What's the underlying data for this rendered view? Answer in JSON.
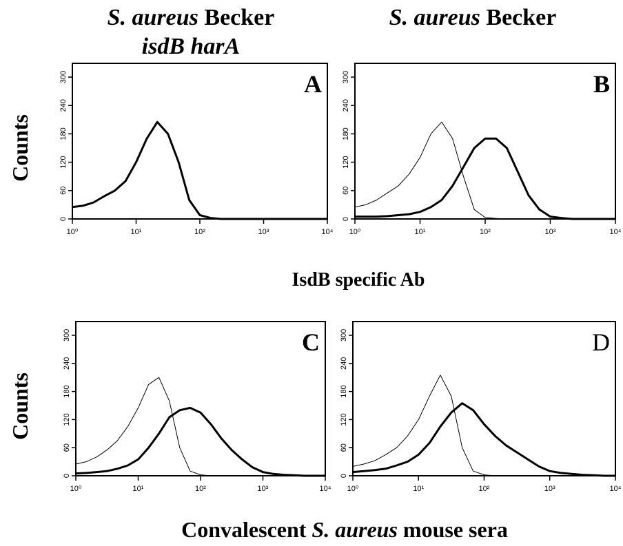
{
  "figure": {
    "column_titles": [
      [
        [
          {
            "text": "S. aureus",
            "italic": true
          },
          {
            "text": " Becker",
            "italic": false
          }
        ],
        [
          {
            "text": "isdB harA",
            "italic": true
          }
        ]
      ],
      [
        [
          {
            "text": "S. aureus",
            "italic": true
          },
          {
            "text": " Becker",
            "italic": false
          }
        ]
      ]
    ],
    "rows": [
      {
        "y_label": "Counts",
        "x_label": [
          {
            "text": "IsdB specific Ab",
            "italic": false
          }
        ]
      },
      {
        "y_label": "Counts",
        "x_label": [
          {
            "text": "Convalescent ",
            "italic": false
          },
          {
            "text": "S. aureus",
            "italic": true
          },
          {
            "text": " mouse sera",
            "italic": false
          }
        ]
      }
    ]
  },
  "chart_data": [
    {
      "type": "line",
      "label": "A",
      "label_bold": true,
      "xscale": "log",
      "x": [
        1,
        1.47,
        2.15,
        3.16,
        4.64,
        6.81,
        10,
        14.7,
        21.5,
        31.6,
        46.4,
        68.1,
        100,
        147,
        215,
        316,
        464,
        681,
        1000,
        1470,
        2150,
        3160,
        4640,
        6810,
        10000
      ],
      "series": [
        {
          "color": "#000",
          "width": 1,
          "values": [
            24,
            28,
            36,
            48,
            60,
            80,
            120,
            172,
            205,
            178,
            118,
            40,
            8,
            2,
            0,
            0,
            0,
            0,
            0,
            0,
            0,
            0,
            0,
            0,
            0
          ]
        },
        {
          "color": "#000",
          "width": 3,
          "values": [
            25,
            28,
            35,
            48,
            60,
            80,
            120,
            170,
            205,
            180,
            120,
            40,
            8,
            2,
            0,
            0,
            0,
            0,
            0,
            0,
            0,
            0,
            0,
            0,
            0
          ]
        }
      ],
      "xlim": [
        1,
        10000
      ],
      "ylim": [
        0,
        300
      ],
      "xticks": [
        {
          "value": 1,
          "label": "10⁰"
        },
        {
          "value": 10,
          "label": "10¹"
        },
        {
          "value": 100,
          "label": "10²"
        },
        {
          "value": 1000,
          "label": "10³"
        },
        {
          "value": 10000,
          "label": "10⁴"
        }
      ],
      "yticks": [
        0,
        60,
        120,
        180,
        240,
        300
      ]
    },
    {
      "type": "line",
      "label": "B",
      "label_bold": true,
      "xscale": "log",
      "x": [
        1,
        1.47,
        2.15,
        3.16,
        4.64,
        6.81,
        10,
        14.7,
        21.5,
        31.6,
        46.4,
        68.1,
        100,
        147,
        215,
        316,
        464,
        681,
        1000,
        1470,
        2150,
        3160,
        4640,
        6810,
        10000
      ],
      "series": [
        {
          "color": "#000",
          "width": 1,
          "values": [
            25,
            30,
            40,
            55,
            70,
            95,
            130,
            180,
            205,
            170,
            90,
            20,
            3,
            1,
            0,
            0,
            0,
            0,
            0,
            0,
            0,
            0,
            0,
            0,
            0
          ]
        },
        {
          "color": "#000",
          "width": 3,
          "values": [
            5,
            5,
            5,
            6,
            8,
            10,
            15,
            25,
            40,
            70,
            110,
            150,
            170,
            170,
            150,
            100,
            50,
            20,
            5,
            2,
            0,
            0,
            0,
            0,
            0
          ]
        }
      ],
      "xlim": [
        1,
        10000
      ],
      "ylim": [
        0,
        300
      ],
      "xticks": [
        {
          "value": 1,
          "label": "10⁰"
        },
        {
          "value": 10,
          "label": "10¹"
        },
        {
          "value": 100,
          "label": "10²"
        },
        {
          "value": 1000,
          "label": "10³"
        },
        {
          "value": 10000,
          "label": "10⁴"
        }
      ],
      "yticks": [
        0,
        60,
        120,
        180,
        240,
        300
      ]
    },
    {
      "type": "line",
      "label": "C",
      "label_bold": true,
      "xscale": "log",
      "x": [
        1,
        1.47,
        2.15,
        3.16,
        4.64,
        6.81,
        10,
        14.7,
        21.5,
        31.6,
        46.4,
        68.1,
        100,
        147,
        215,
        316,
        464,
        681,
        1000,
        1470,
        2150,
        3160,
        4640,
        6810,
        10000
      ],
      "series": [
        {
          "color": "#000",
          "width": 1,
          "values": [
            25,
            30,
            40,
            55,
            75,
            105,
            145,
            195,
            210,
            160,
            60,
            10,
            2,
            0,
            0,
            0,
            0,
            0,
            0,
            0,
            0,
            0,
            0,
            0,
            0
          ]
        },
        {
          "color": "#000",
          "width": 3,
          "values": [
            5,
            6,
            8,
            10,
            15,
            22,
            35,
            60,
            90,
            125,
            140,
            145,
            135,
            110,
            80,
            55,
            35,
            18,
            8,
            4,
            2,
            1,
            0,
            0,
            0
          ]
        }
      ],
      "xlim": [
        1,
        10000
      ],
      "ylim": [
        0,
        300
      ],
      "xticks": [
        {
          "value": 1,
          "label": "10⁰"
        },
        {
          "value": 10,
          "label": "10¹"
        },
        {
          "value": 100,
          "label": "10²"
        },
        {
          "value": 1000,
          "label": "10³"
        },
        {
          "value": 10000,
          "label": "10⁴"
        }
      ],
      "yticks": [
        0,
        60,
        120,
        180,
        240,
        300
      ]
    },
    {
      "type": "line",
      "label": "D",
      "label_bold": false,
      "xscale": "log",
      "x": [
        1,
        1.47,
        2.15,
        3.16,
        4.64,
        6.81,
        10,
        14.7,
        21.5,
        31.6,
        46.4,
        68.1,
        100,
        147,
        215,
        316,
        464,
        681,
        1000,
        1470,
        2150,
        3160,
        4640,
        6810,
        10000
      ],
      "series": [
        {
          "color": "#000",
          "width": 1,
          "values": [
            20,
            25,
            32,
            45,
            60,
            85,
            120,
            170,
            215,
            170,
            60,
            10,
            2,
            0,
            0,
            0,
            0,
            0,
            0,
            0,
            0,
            0,
            0,
            0,
            0
          ]
        },
        {
          "color": "#000",
          "width": 3,
          "values": [
            8,
            10,
            12,
            15,
            22,
            30,
            45,
            70,
            105,
            135,
            155,
            140,
            110,
            85,
            65,
            50,
            35,
            20,
            10,
            6,
            4,
            2,
            1,
            0,
            0
          ]
        }
      ],
      "xlim": [
        1,
        10000
      ],
      "ylim": [
        0,
        300
      ],
      "xticks": [
        {
          "value": 1,
          "label": "10⁰"
        },
        {
          "value": 10,
          "label": "10¹"
        },
        {
          "value": 100,
          "label": "10²"
        },
        {
          "value": 1000,
          "label": "10³"
        },
        {
          "value": 10000,
          "label": "10⁴"
        }
      ],
      "yticks": [
        0,
        60,
        120,
        180,
        240,
        300
      ]
    }
  ]
}
